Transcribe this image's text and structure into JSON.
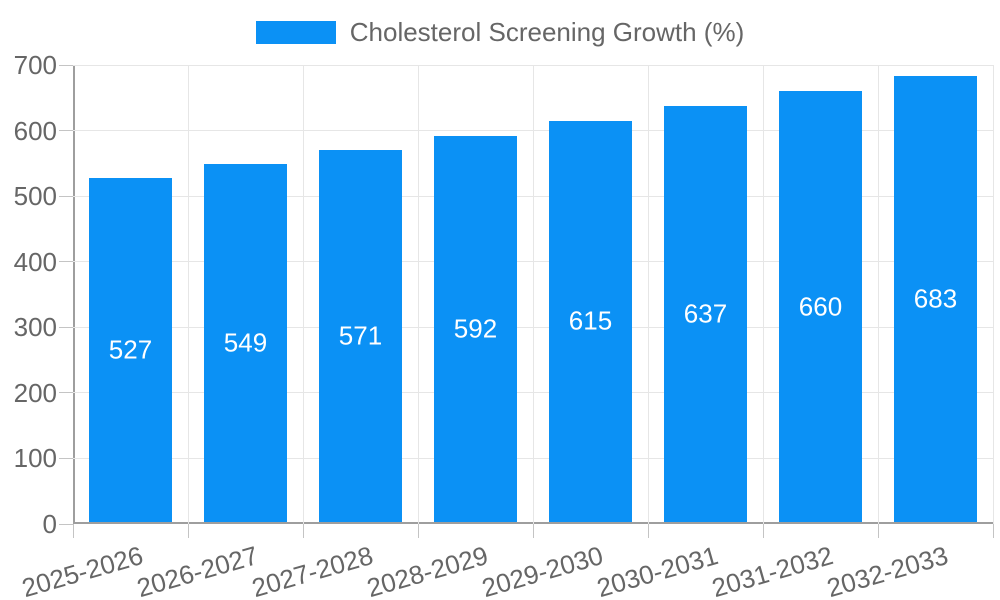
{
  "legend": {
    "label": "Cholesterol Screening Growth (%)"
  },
  "chart_data": {
    "type": "bar",
    "categories": [
      "2025-2026",
      "2026-2027",
      "2027-2028",
      "2028-2029",
      "2029-2030",
      "2030-2031",
      "2031-2032",
      "2032-2033"
    ],
    "series": [
      {
        "name": "Cholesterol Screening Growth (%)",
        "values": [
          527,
          549,
          571,
          592,
          615,
          637,
          660,
          683
        ]
      }
    ],
    "title": "",
    "xlabel": "",
    "ylabel": "",
    "ylim": [
      0,
      700
    ],
    "yticks": [
      0,
      100,
      200,
      300,
      400,
      500,
      600,
      700
    ],
    "grid": true,
    "legend_position": "top",
    "x_label_rotation_deg": -16,
    "bar_color": "#0b91f5",
    "value_label_color": "#ffffff",
    "axis_text_color": "#666666",
    "gridline_color": "#e6e6e6",
    "axis_line_color": "#9e9e9e"
  }
}
